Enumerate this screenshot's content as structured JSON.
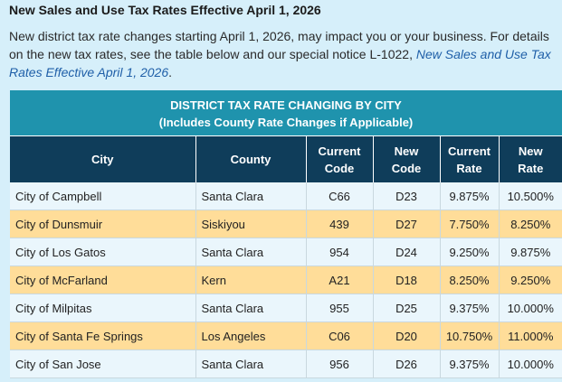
{
  "heading": "New Sales and Use Tax Rates Effective April 1, 2026",
  "intro": {
    "text": "New district tax rate changes starting April 1, 2026, may impact you or your business. For details on the new tax rates, see the table below and our special notice L-1022, ",
    "link_text": "New Sales and Use Tax Rates Effective April 1, 2026",
    "end": "."
  },
  "table": {
    "title_line1": "DISTRICT TAX RATE CHANGING BY CITY",
    "title_line2": "(Includes County Rate Changes if Applicable)",
    "headers": {
      "city": "City",
      "county": "County",
      "current_code_1": "Current",
      "current_code_2": "Code",
      "new_code_1": "New",
      "new_code_2": "Code",
      "current_rate_1": "Current",
      "current_rate_2": "Rate",
      "new_rate_1": "New",
      "new_rate_2": "Rate"
    },
    "rows": [
      {
        "city": "City of Campbell",
        "county": "Santa Clara",
        "current_code": "C66",
        "new_code": "D23",
        "current_rate": "9.875%",
        "new_rate": "10.500%"
      },
      {
        "city": "City of Dunsmuir",
        "county": "Siskiyou",
        "current_code": "439",
        "new_code": "D27",
        "current_rate": "7.750%",
        "new_rate": "8.250%"
      },
      {
        "city": "City of Los Gatos",
        "county": "Santa Clara",
        "current_code": "954",
        "new_code": "D24",
        "current_rate": "9.250%",
        "new_rate": "9.875%"
      },
      {
        "city": "City of McFarland",
        "county": "Kern",
        "current_code": "A21",
        "new_code": "D18",
        "current_rate": "8.250%",
        "new_rate": "9.250%"
      },
      {
        "city": "City of Milpitas",
        "county": "Santa Clara",
        "current_code": "955",
        "new_code": "D25",
        "current_rate": "9.375%",
        "new_rate": "10.000%"
      },
      {
        "city": "City of Santa Fe Springs",
        "county": "Los Angeles",
        "current_code": "C06",
        "new_code": "D20",
        "current_rate": "10.750%",
        "new_rate": "11.000%"
      },
      {
        "city": "City of San Jose",
        "county": "Santa Clara",
        "current_code": "956",
        "new_code": "D26",
        "current_rate": "9.375%",
        "new_rate": "10.000%"
      }
    ]
  }
}
